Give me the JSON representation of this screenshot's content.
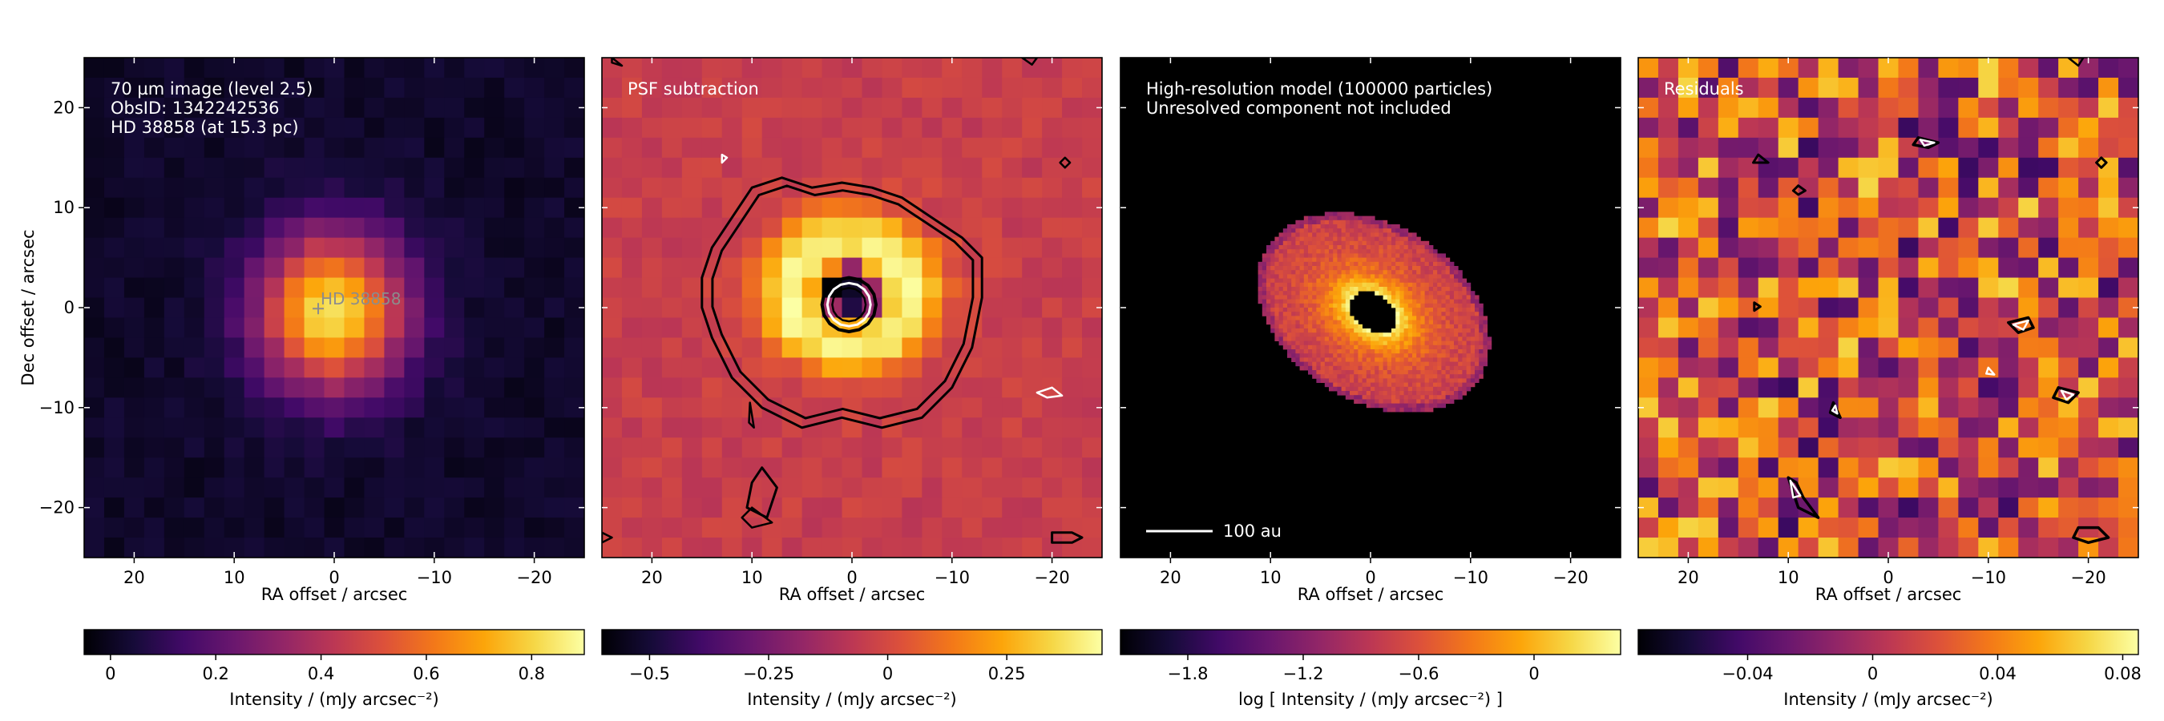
{
  "chart_data": [
    {
      "type": "heatmap",
      "annotations": [
        "70 µm image (level 2.5)",
        "ObsID: 1342242536",
        "HD 38858 (at 15.3 pc)"
      ],
      "star_label": "HD 38858",
      "xlabel": "RA offset / arcsec",
      "ylabel": "Dec offset / arcsec",
      "xlim": [
        25,
        -25
      ],
      "ylim": [
        -25,
        25
      ],
      "x_ticks": [
        20,
        10,
        0,
        -10,
        -20
      ],
      "x_tick_labels": [
        "20",
        "10",
        "0",
        "−10",
        "−20"
      ],
      "y_ticks": [
        20,
        10,
        0,
        -10,
        -20
      ],
      "y_tick_labels": [
        "20",
        "10",
        "0",
        "−10",
        "−20"
      ],
      "colorbar": {
        "range": [
          -0.05,
          0.9
        ],
        "ticks": [
          0,
          0.2,
          0.4,
          0.6,
          0.8
        ],
        "tick_labels": [
          "0",
          "0.2",
          "0.4",
          "0.6",
          "0.8"
        ],
        "label": "Intensity / (mJy arcsec⁻²)"
      },
      "colormap": "inferno"
    },
    {
      "type": "heatmap",
      "annotations": [
        "PSF subtraction"
      ],
      "xlabel": "RA offset / arcsec",
      "xlim": [
        25,
        -25
      ],
      "ylim": [
        -25,
        25
      ],
      "x_ticks": [
        20,
        10,
        0,
        -10,
        -20
      ],
      "x_tick_labels": [
        "20",
        "10",
        "0",
        "−10",
        "−20"
      ],
      "colorbar": {
        "range": [
          -0.6,
          0.45
        ],
        "ticks": [
          -0.5,
          -0.25,
          0,
          0.25
        ],
        "tick_labels": [
          "−0.5",
          "−0.25",
          "0",
          "0.25"
        ],
        "label": "Intensity / (mJy arcsec⁻²)"
      },
      "contours": "black and white contour levels",
      "colormap": "inferno"
    },
    {
      "type": "heatmap",
      "annotations": [
        "High-resolution model (100000 particles)",
        "Unresolved component not included"
      ],
      "scale_bar_label": "100 au",
      "xlabel": "RA offset / arcsec",
      "xlim": [
        25,
        -25
      ],
      "ylim": [
        -25,
        25
      ],
      "x_ticks": [
        20,
        10,
        0,
        -10,
        -20
      ],
      "x_tick_labels": [
        "20",
        "10",
        "0",
        "−10",
        "−20"
      ],
      "colorbar": {
        "range": [
          -2.15,
          0.45
        ],
        "ticks": [
          -1.8,
          -1.2,
          -0.6,
          0
        ],
        "tick_labels": [
          "−1.8",
          "−1.2",
          "−0.6",
          "0"
        ],
        "label": "log [ Intensity / (mJy arcsec⁻²) ]"
      },
      "colormap": "inferno"
    },
    {
      "type": "heatmap",
      "annotations": [
        "Residuals"
      ],
      "xlabel": "RA offset / arcsec",
      "xlim": [
        25,
        -25
      ],
      "ylim": [
        -25,
        25
      ],
      "x_ticks": [
        20,
        10,
        0,
        -10,
        -20
      ],
      "x_tick_labels": [
        "20",
        "10",
        "0",
        "−10",
        "−20"
      ],
      "colorbar": {
        "range": [
          -0.075,
          0.085
        ],
        "ticks": [
          -0.04,
          0,
          0.04,
          0.08
        ],
        "tick_labels": [
          "−0.04",
          "0",
          "0.04",
          "0.08"
        ],
        "label": "Intensity / (mJy arcsec⁻²)"
      },
      "colormap": "inferno"
    }
  ]
}
